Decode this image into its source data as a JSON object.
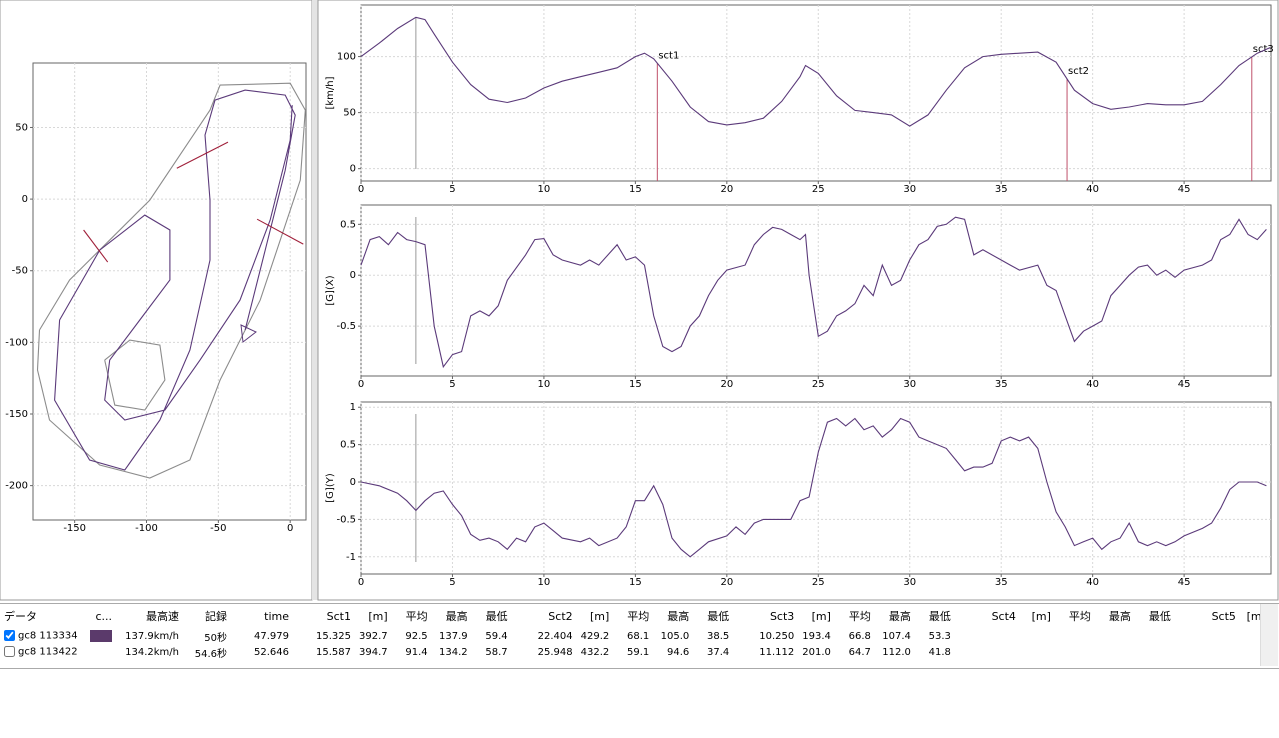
{
  "chart_data": [
    {
      "type": "line",
      "xlim": [
        -179,
        11
      ],
      "ylim": [
        -224,
        95
      ],
      "xticks": [
        -150,
        -100,
        -50,
        0
      ],
      "yticks": [
        50,
        0,
        -50,
        -100,
        -150,
        -200
      ],
      "grid": true,
      "series": [
        {
          "color": "#8c8c8c",
          "x": [
            -174.5,
            -153.5,
            -97.7,
            -55.8,
            -48.8,
            0,
            10.5,
            7.0,
            -20.9,
            -48.8,
            -69.8,
            -97.7,
            -132.6,
            -167.5,
            -175.9,
            -174.5
          ],
          "values": [
            -91.4,
            -56.5,
            -0.7,
            62.1,
            79.6,
            80.9,
            62.1,
            13.3,
            -70.5,
            -126.3,
            -182.1,
            -194.7,
            -185.6,
            -154.2,
            -119.3,
            -91.4
          ]
        },
        {
          "color": "#8c8c8c",
          "x": [
            -129.1,
            -111.6,
            -90.7,
            -87.2,
            -101.2,
            -122.1,
            -129.1
          ],
          "values": [
            -112.4,
            -98.4,
            -101.9,
            -126.3,
            -147.2,
            -143.8,
            -112.4
          ]
        },
        {
          "color": "#5b3a7a",
          "x": [
            -31.4,
            -17.4,
            -3.5,
            3.5,
            -3.5,
            -31.4,
            -52.3,
            -59.3,
            -55.8,
            -55.8,
            -69.8,
            -90.7,
            -115.1,
            -139.6,
            -164.0,
            -160.5,
            -132.6,
            -101.2,
            -83.7,
            -83.7,
            -104.7,
            -125.6,
            -129.1,
            -115.1,
            -87.2,
            -62.8,
            -34.9,
            -14.0,
            0,
            1.4
          ],
          "values": [
            -91.4,
            -35.6,
            20.2,
            58.6,
            72.6,
            76.1,
            69.1,
            44.7,
            -0.7,
            -42.6,
            -105.4,
            -154.2,
            -189.1,
            -182.1,
            -140.3,
            -84.4,
            -35.6,
            -11.2,
            -21.6,
            -56.5,
            -84.4,
            -112.4,
            -140.3,
            -154.2,
            -147.2,
            -112.4,
            -70.5,
            -14.7,
            41.2,
            65.6
          ]
        },
        {
          "color": "#a0203a",
          "x": [
            -78.9,
            -43.3
          ],
          "values": [
            21.6,
            39.8
          ]
        },
        {
          "color": "#a0203a",
          "x": [
            -23.0,
            9.1
          ],
          "values": [
            -14.0,
            -31.4
          ]
        },
        {
          "color": "#a0203a",
          "x": [
            -143.8,
            -127.0
          ],
          "values": [
            -21.6,
            -44.0
          ]
        }
      ]
    },
    {
      "type": "line",
      "ylabel": "[km/h]",
      "xlim": [
        0,
        49.75
      ],
      "ylim": [
        -11,
        146
      ],
      "xticks": [
        0,
        5,
        10,
        15,
        20,
        25,
        30,
        35,
        40,
        45
      ],
      "yticks": [
        0,
        50,
        100
      ],
      "grid": true,
      "cursor_x": 3,
      "annotations": [
        {
          "text": "sct1",
          "x": 16.2
        },
        {
          "text": "sct2",
          "x": 38.6
        },
        {
          "text": "sct3",
          "x": 48.7
        }
      ],
      "series": [
        {
          "color": "#5b3a7a",
          "x": [
            0,
            1,
            2,
            3,
            3.5,
            4,
            5,
            6,
            7,
            8,
            9,
            10,
            11,
            12,
            13,
            14,
            15,
            15.5,
            16,
            17,
            18,
            19,
            20,
            21,
            22,
            23,
            24,
            24.3,
            25,
            26,
            27,
            28,
            29,
            30,
            31,
            32,
            33,
            34,
            35,
            36,
            37,
            38,
            39,
            40,
            41,
            42,
            43,
            44,
            45,
            46,
            47,
            48,
            49,
            49.7
          ],
          "values": [
            100,
            112,
            125,
            135,
            133,
            120,
            95,
            75,
            62,
            59,
            63,
            72,
            78,
            82,
            86,
            90,
            100,
            103,
            98,
            78,
            55,
            42,
            39,
            41,
            45,
            60,
            82,
            92,
            85,
            65,
            52,
            50,
            48,
            38,
            48,
            70,
            90,
            100,
            102,
            103,
            104,
            95,
            70,
            58,
            53,
            55,
            58,
            57,
            57,
            60,
            75,
            92,
            103,
            108
          ]
        }
      ]
    },
    {
      "type": "line",
      "ylabel": "[G](X)",
      "xlim": [
        0,
        49.75
      ],
      "ylim": [
        -0.99,
        0.69
      ],
      "xticks": [
        0,
        5,
        10,
        15,
        20,
        25,
        30,
        35,
        40,
        45
      ],
      "yticks": [
        0.5,
        0,
        -0.5
      ],
      "grid": true,
      "cursor_x": 3,
      "series": [
        {
          "color": "#5b3a7a",
          "x": [
            0,
            0.5,
            1,
            1.5,
            2,
            2.5,
            3,
            3.5,
            4,
            4.5,
            5,
            5.5,
            6,
            6.5,
            7,
            7.5,
            8,
            9,
            9.5,
            10,
            10.5,
            11,
            12,
            12.5,
            13,
            14,
            14.5,
            15,
            15.5,
            16,
            16.5,
            17,
            17.5,
            18,
            18.5,
            19,
            19.5,
            20,
            21,
            21.5,
            22,
            22.5,
            23,
            23.5,
            24,
            24.3,
            24.5,
            25,
            25.5,
            26,
            26.5,
            27,
            27.5,
            28,
            28.5,
            29,
            29.5,
            30,
            30.5,
            31,
            31.5,
            32,
            32.5,
            33,
            33.5,
            34,
            35,
            35.5,
            36,
            37,
            37.5,
            38,
            38.5,
            39,
            39.5,
            40,
            40.5,
            41,
            41.5,
            42,
            42.5,
            43,
            43.5,
            44,
            44.5,
            45,
            46,
            46.5,
            47,
            47.5,
            48,
            48.5,
            49,
            49.5
          ],
          "values": [
            0.1,
            0.35,
            0.38,
            0.3,
            0.42,
            0.35,
            0.33,
            0.3,
            -0.5,
            -0.9,
            -0.78,
            -0.75,
            -0.4,
            -0.35,
            -0.4,
            -0.3,
            -0.05,
            0.2,
            0.35,
            0.36,
            0.2,
            0.15,
            0.1,
            0.15,
            0.1,
            0.3,
            0.15,
            0.18,
            0.1,
            -0.4,
            -0.7,
            -0.75,
            -0.7,
            -0.5,
            -0.4,
            -0.2,
            -0.05,
            0.05,
            0.1,
            0.3,
            0.4,
            0.47,
            0.45,
            0.4,
            0.35,
            0.4,
            0.0,
            -0.6,
            -0.55,
            -0.4,
            -0.35,
            -0.28,
            -0.1,
            -0.2,
            0.1,
            -0.1,
            -0.05,
            0.15,
            0.3,
            0.35,
            0.48,
            0.5,
            0.57,
            0.55,
            0.2,
            0.25,
            0.15,
            0.1,
            0.05,
            0.1,
            -0.1,
            -0.15,
            -0.4,
            -0.65,
            -0.55,
            -0.5,
            -0.45,
            -0.2,
            -0.1,
            0.0,
            0.08,
            0.1,
            0.0,
            0.05,
            -0.02,
            0.05,
            0.1,
            0.15,
            0.35,
            0.4,
            0.55,
            0.4,
            0.35,
            0.45
          ]
        }
      ]
    },
    {
      "type": "line",
      "ylabel": "[G](Y)",
      "xlim": [
        0,
        49.75
      ],
      "ylim": [
        -1.23,
        1.07
      ],
      "xticks": [
        0,
        5,
        10,
        15,
        20,
        25,
        30,
        35,
        40,
        45
      ],
      "yticks": [
        1,
        0.5,
        0,
        -0.5,
        -1
      ],
      "grid": true,
      "cursor_x": 3,
      "series": [
        {
          "color": "#5b3a7a",
          "x": [
            0,
            1,
            2,
            2.5,
            3,
            3.5,
            4,
            4.5,
            5,
            5.5,
            6,
            6.5,
            7,
            7.5,
            8,
            8.5,
            9,
            9.5,
            10,
            10.5,
            11,
            12,
            12.5,
            13,
            14,
            14.5,
            15,
            15.5,
            16,
            16.5,
            17,
            17.5,
            18,
            18.5,
            19,
            20,
            20.5,
            21,
            21.5,
            22,
            23,
            23.5,
            24,
            24.5,
            25,
            25.5,
            26,
            26.5,
            27,
            27.5,
            28,
            28.5,
            29,
            29.5,
            30,
            30.5,
            31,
            32,
            32.5,
            33,
            33.5,
            34,
            34.5,
            35,
            35.5,
            36,
            36.5,
            37,
            37.5,
            38,
            38.5,
            39,
            39.5,
            40,
            40.5,
            41,
            41.5,
            42,
            42.5,
            43,
            43.5,
            44,
            44.5,
            45,
            46,
            46.5,
            47,
            47.5,
            48,
            49,
            49.5
          ],
          "values": [
            0.0,
            -0.05,
            -0.15,
            -0.25,
            -0.38,
            -0.25,
            -0.15,
            -0.12,
            -0.3,
            -0.45,
            -0.7,
            -0.78,
            -0.75,
            -0.8,
            -0.9,
            -0.75,
            -0.8,
            -0.6,
            -0.55,
            -0.65,
            -0.75,
            -0.8,
            -0.75,
            -0.85,
            -0.75,
            -0.6,
            -0.25,
            -0.25,
            -0.05,
            -0.3,
            -0.75,
            -0.9,
            -1.0,
            -0.9,
            -0.8,
            -0.72,
            -0.6,
            -0.7,
            -0.55,
            -0.5,
            -0.5,
            -0.5,
            -0.25,
            -0.2,
            0.4,
            0.8,
            0.85,
            0.75,
            0.85,
            0.7,
            0.75,
            0.6,
            0.7,
            0.85,
            0.8,
            0.6,
            0.55,
            0.45,
            0.3,
            0.15,
            0.2,
            0.2,
            0.25,
            0.55,
            0.6,
            0.55,
            0.6,
            0.45,
            0.0,
            -0.4,
            -0.6,
            -0.85,
            -0.8,
            -0.75,
            -0.9,
            -0.8,
            -0.75,
            -0.55,
            -0.8,
            -0.85,
            -0.8,
            -0.85,
            -0.8,
            -0.72,
            -0.62,
            -0.55,
            -0.35,
            -0.1,
            0.0,
            0.0,
            -0.05
          ]
        }
      ]
    }
  ],
  "table": {
    "headers": [
      "データ",
      "c...",
      "最高速",
      "記録",
      "time",
      "Sct1",
      "[m]",
      "平均",
      "最高",
      "最低",
      "Sct2",
      "[m]",
      "平均",
      "最高",
      "最低",
      "Sct3",
      "[m]",
      "平均",
      "最高",
      "最低",
      "Sct4",
      "[m]",
      "平均",
      "最高",
      "最低",
      "Sct5",
      "[m]"
    ],
    "rows": [
      {
        "checked": true,
        "name": "gc8 113334",
        "color": "#5b3a6b",
        "cells": [
          "137.9km/h",
          "50秒",
          "47.979",
          "15.325",
          "392.7",
          "92.5",
          "137.9",
          "59.4",
          "22.404",
          "429.2",
          "68.1",
          "105.0",
          "38.5",
          "10.250",
          "193.4",
          "66.8",
          "107.4",
          "53.3"
        ]
      },
      {
        "checked": false,
        "name": "gc8 113422",
        "cells": [
          "134.2km/h",
          "54.6秒",
          "52.646",
          "15.587",
          "394.7",
          "91.4",
          "134.2",
          "58.7",
          "25.948",
          "432.2",
          "59.1",
          "94.6",
          "37.4",
          "11.112",
          "201.0",
          "64.7",
          "112.0",
          "41.8"
        ]
      }
    ]
  }
}
